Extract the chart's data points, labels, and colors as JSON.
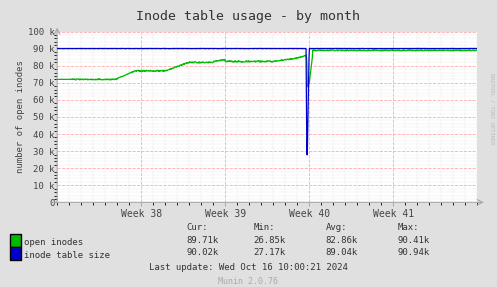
{
  "title": "Inode table usage - by month",
  "ylabel": "number of open inodes",
  "bg_color": "#e0e0e0",
  "plot_bg_color": "#ffffff",
  "grid_color_major": "#ffaaaa",
  "grid_color_minor": "#cccccc",
  "ylim": [
    0,
    100000
  ],
  "ytick_labels": [
    "0",
    "10 k",
    "20 k",
    "30 k",
    "40 k",
    "50 k",
    "60 k",
    "70 k",
    "80 k",
    "90 k",
    "100 k"
  ],
  "week_labels": [
    "Week 38",
    "Week 39",
    "Week 40",
    "Week 41"
  ],
  "open_inodes_color": "#00bb00",
  "inode_table_color": "#0000cc",
  "watermark": "RRDTOOL / TOBI OETIKER",
  "footer_text": "Munin 2.0.76",
  "stats_cur_open": "89.71k",
  "stats_min_open": "26.85k",
  "stats_avg_open": "82.86k",
  "stats_max_open": "90.41k",
  "stats_cur_table": "90.02k",
  "stats_min_table": "27.17k",
  "stats_avg_table": "89.04k",
  "stats_max_table": "90.94k",
  "last_update": "Last update: Wed Oct 16 10:00:21 2024"
}
